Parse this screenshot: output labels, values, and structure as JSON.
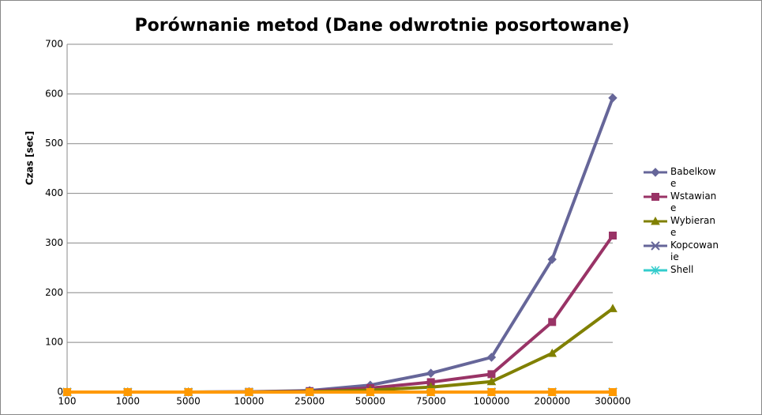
{
  "chart_data": {
    "type": "line",
    "title": "Porównanie metod (Dane odwrotnie posortowane)",
    "y_label": "Czas [sec]",
    "categories": [
      "100",
      "1000",
      "5000",
      "10000",
      "25000",
      "50000",
      "75000",
      "100000",
      "200000",
      "300000"
    ],
    "series": [
      {
        "name": "Babelkowe",
        "color": "#666699",
        "marker": "diamond",
        "values": [
          0,
          0,
          0,
          0.5,
          3,
          14,
          38,
          70,
          267,
          592
        ]
      },
      {
        "name": "Wstawiane",
        "color": "#993366",
        "marker": "square",
        "values": [
          0,
          0,
          0,
          0.3,
          2,
          8,
          20,
          36,
          141,
          315
        ]
      },
      {
        "name": "Wybierane",
        "color": "#808000",
        "marker": "triangle",
        "values": [
          0,
          0,
          0,
          0.2,
          1,
          4,
          10,
          21,
          78,
          168
        ]
      },
      {
        "name": "Kopcowanie",
        "color": "#666699",
        "marker": "x",
        "values": [
          0,
          0,
          0,
          0,
          0,
          0,
          0,
          0,
          0,
          0.1
        ]
      },
      {
        "name": "Shell",
        "color": "#33cccc",
        "marker": "star",
        "values": [
          0,
          0,
          0,
          0,
          0,
          0,
          0,
          0,
          0,
          0
        ]
      },
      {
        "color": "#ff9900",
        "marker": "square",
        "values": [
          0,
          0,
          0,
          0,
          0,
          0,
          0,
          0,
          0,
          0
        ]
      }
    ],
    "ylim": [
      0,
      700
    ],
    "yticks": [
      0,
      100,
      200,
      300,
      400,
      500,
      600,
      700
    ],
    "grid": true
  }
}
